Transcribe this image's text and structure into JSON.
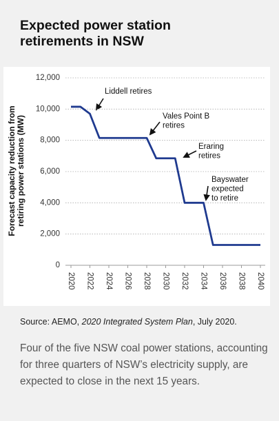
{
  "title": "Expected power station retirements in NSW",
  "chart_data": {
    "type": "line",
    "ylabel": [
      "Forecast capacity reduction from",
      "retiring power stations (MW)"
    ],
    "x": [
      2020,
      2021,
      2022,
      2023,
      2028,
      2029,
      2031,
      2032,
      2034,
      2035,
      2040
    ],
    "series": [
      {
        "name": "Forecast capacity",
        "color": "#1f3a8f",
        "values": [
          10150,
          10150,
          9700,
          8150,
          8150,
          6850,
          6850,
          4000,
          4000,
          1300,
          1300
        ]
      }
    ],
    "xlim": [
      2020,
      2040
    ],
    "xticks": [
      2020,
      2022,
      2024,
      2026,
      2028,
      2030,
      2032,
      2034,
      2036,
      2038,
      2040
    ],
    "ylim": [
      0,
      12000
    ],
    "yticks": [
      0,
      {
        "value": 2000,
        "label": "2,000"
      },
      {
        "value": 4000,
        "label": "4,000"
      },
      {
        "value": 6000,
        "label": "6,000"
      },
      {
        "value": 8000,
        "label": "8,000"
      },
      {
        "value": 10000,
        "label": "10,000"
      },
      {
        "value": 12000,
        "label": "12,000"
      }
    ],
    "grid": true,
    "annotations": [
      {
        "lines": [
          "Liddell retires"
        ]
      },
      {
        "lines": [
          "Vales Point B",
          "retires"
        ]
      },
      {
        "lines": [
          "Eraring",
          "retires"
        ]
      },
      {
        "lines": [
          "Bayswater",
          "expected",
          "to retire"
        ]
      }
    ]
  },
  "source": {
    "prefix": "Source: AEMO, ",
    "work": "2020 Integrated System Plan",
    "suffix": ", July 2020."
  },
  "caption": "Four of the five NSW coal power stations, accounting for three quarters of NSW’s electricity supply, are expected to close in the next 15 years."
}
